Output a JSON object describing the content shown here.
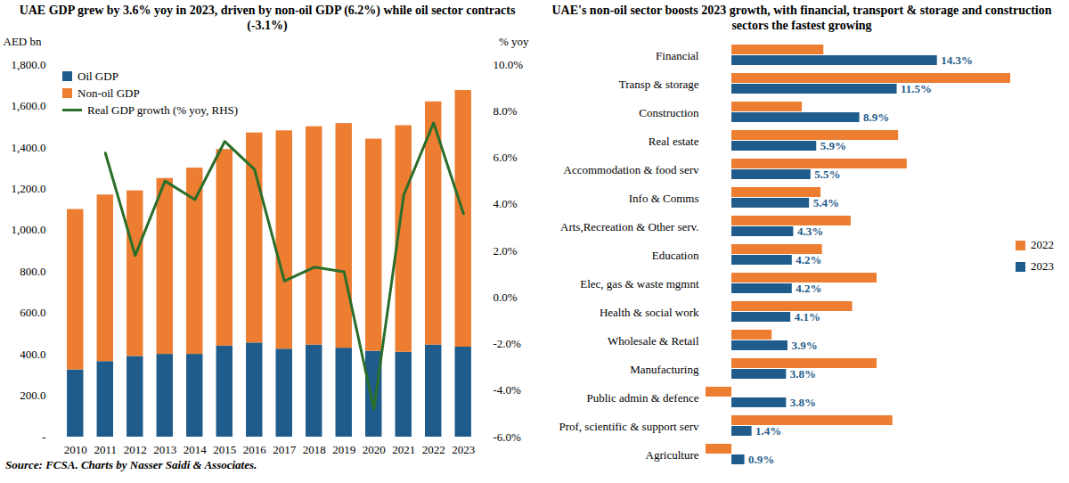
{
  "chart_data": [
    {
      "type": "bar",
      "title": "UAE GDP grew by 3.6% yoy in 2023, driven by non-oil GDP (6.2%) while oil sector contracts (-3.1%)",
      "stacked": true,
      "categories": [
        "2010",
        "2011",
        "2012",
        "2013",
        "2014",
        "2015",
        "2016",
        "2017",
        "2018",
        "2019",
        "2020",
        "2021",
        "2022",
        "2023"
      ],
      "series": [
        {
          "name": "Oil GDP",
          "color": "#1f5c8b",
          "values": [
            325,
            365,
            390,
            400,
            400,
            440,
            455,
            425,
            445,
            430,
            415,
            410,
            445,
            435
          ]
        },
        {
          "name": "Non-oil GDP",
          "color": "#ed7d31",
          "values": [
            775,
            805,
            800,
            850,
            900,
            950,
            1015,
            1055,
            1055,
            1085,
            1025,
            1095,
            1175,
            1240
          ]
        },
        {
          "name": "Real GDP growth (% yoy, RHS)",
          "type": "line",
          "axis": "y2",
          "color": "#2a6e2a",
          "values": [
            null,
            6.2,
            1.8,
            5.0,
            4.2,
            6.7,
            5.5,
            0.7,
            1.3,
            1.1,
            -4.8,
            4.4,
            7.5,
            3.6
          ]
        }
      ],
      "ylabel": "AED bn",
      "ylim": [
        0,
        1800
      ],
      "yticks": [
        {
          "value": 0,
          "label": "-"
        },
        {
          "value": 200,
          "label": "200.0"
        },
        {
          "value": 400,
          "label": "400.0"
        },
        {
          "value": 600,
          "label": "600.0"
        },
        {
          "value": 800,
          "label": "800.0"
        },
        {
          "value": 1000,
          "label": "1,000.0"
        },
        {
          "value": 1200,
          "label": "1,200.0"
        },
        {
          "value": 1400,
          "label": "1,400.0"
        },
        {
          "value": 1600,
          "label": "1,600.0"
        },
        {
          "value": 1800,
          "label": "1,800.0"
        }
      ],
      "y2label": "% yoy",
      "y2lim": [
        -6,
        10
      ],
      "y2ticks": [
        {
          "value": -6,
          "label": "-6.0%"
        },
        {
          "value": -4,
          "label": "-4.0%"
        },
        {
          "value": -2,
          "label": "-2.0%"
        },
        {
          "value": 0,
          "label": "0.0%"
        },
        {
          "value": 2,
          "label": "2.0%"
        },
        {
          "value": 4,
          "label": "4.0%"
        },
        {
          "value": 6,
          "label": "6.0%"
        },
        {
          "value": 8,
          "label": "8.0%"
        },
        {
          "value": 10,
          "label": "10.0%"
        }
      ],
      "legend": "upper left",
      "grid": false,
      "caption": "Source: FCSA. Charts by Nasser Saidi & Associates."
    },
    {
      "type": "bar",
      "orientation": "horizontal",
      "title": "UAE's non-oil sector boosts 2023 growth, with financial, transport & storage and construction sectors the fastest growing",
      "categories": [
        "Financial",
        "Transp & storage",
        "Construction",
        "Real estate",
        "Accommodation & food serv",
        "Info & Comms",
        "Arts,Recreation & Other serv.",
        "Education",
        "Elec, gas & waste mgmnt",
        "Health & social work",
        "Wholesale & Retail",
        "Manufacturing",
        "Public admin & defence",
        "Prof, scientific & support serv",
        "Agriculture"
      ],
      "series": [
        {
          "name": "2022",
          "color": "#ed7d31",
          "values": [
            6.4,
            19.4,
            4.9,
            11.6,
            12.2,
            6.2,
            8.3,
            6.3,
            10.1,
            8.4,
            2.8,
            10.1,
            -1.8,
            11.2,
            -1.8
          ]
        },
        {
          "name": "2023",
          "color": "#1f5c8b",
          "values": [
            14.3,
            11.5,
            8.9,
            5.9,
            5.5,
            5.4,
            4.3,
            4.2,
            4.2,
            4.1,
            3.9,
            3.8,
            3.8,
            1.4,
            0.9
          ],
          "value_labels": [
            "14.3%",
            "11.5%",
            "8.9%",
            "5.9%",
            "5.5%",
            "5.4%",
            "4.3%",
            "4.2%",
            "4.2%",
            "4.1%",
            "3.9%",
            "3.8%",
            "3.8%",
            "1.4%",
            "0.9%"
          ]
        }
      ],
      "data_labels": true,
      "tick_labels": "y",
      "legend": "right",
      "grid": false
    }
  ]
}
